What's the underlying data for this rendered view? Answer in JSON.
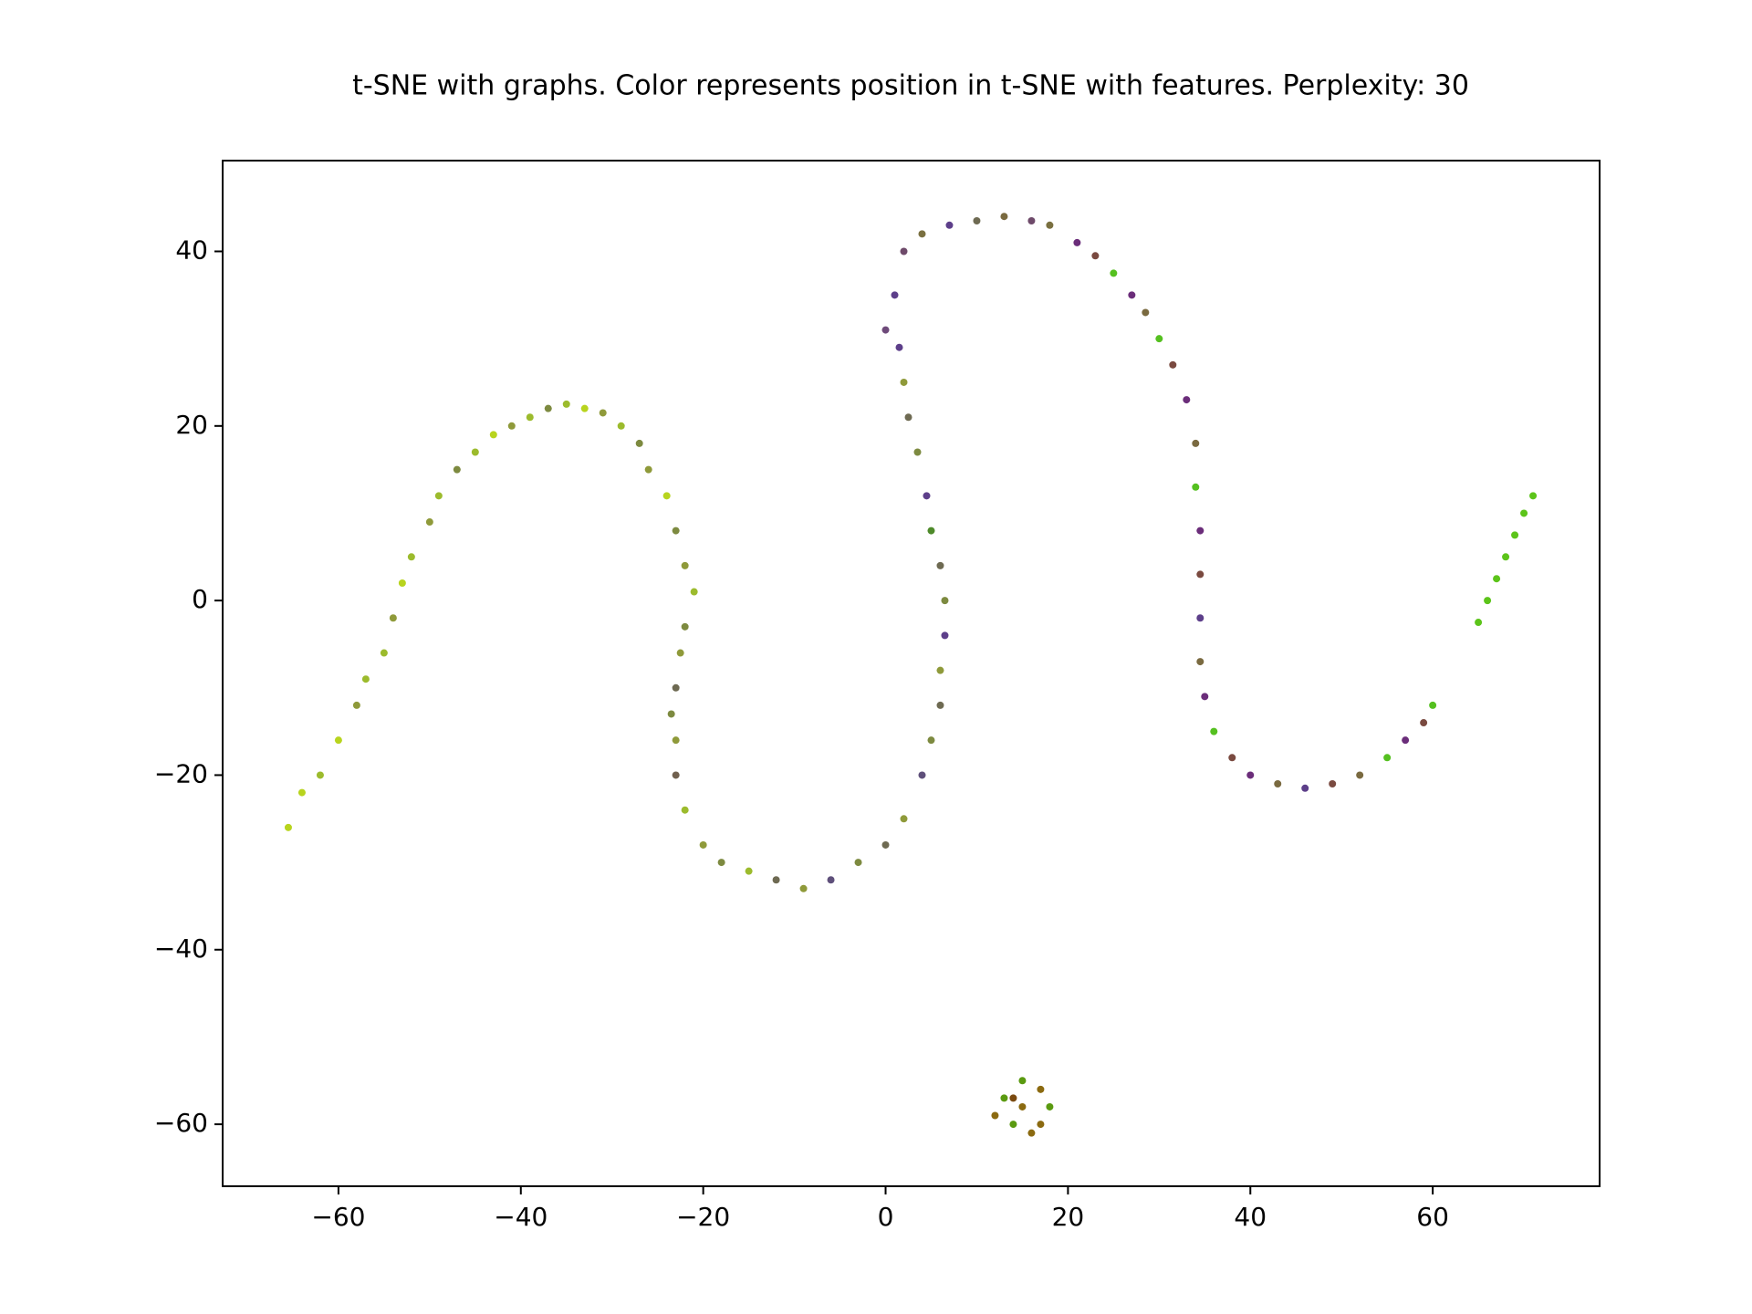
{
  "chart_data": {
    "type": "scatter",
    "title": "t-SNE with graphs. Color represents position in t-SNE with features. Perplexity: 30",
    "xlim": [
      -72.7,
      78.3
    ],
    "ylim": [
      -67.1,
      50.4
    ],
    "xticks": [
      {
        "value": -60,
        "label": "−60"
      },
      {
        "value": -40,
        "label": "−40"
      },
      {
        "value": -20,
        "label": "−20"
      },
      0,
      20,
      40,
      60
    ],
    "yticks": [
      {
        "value": -60,
        "label": "−60"
      },
      {
        "value": -40,
        "label": "−40"
      },
      {
        "value": -20,
        "label": "−20"
      },
      0,
      20,
      40
    ],
    "x": [
      -65.5,
      -64,
      -62,
      -60,
      -58,
      -57,
      -55,
      -54,
      -53,
      -52,
      -50,
      -49,
      -47,
      -45,
      -43,
      -41,
      -39,
      -37,
      -35,
      -33,
      -31,
      -29,
      -27,
      -26,
      -24,
      -23,
      -22,
      -21,
      -22,
      -22.5,
      -23,
      -23.5,
      -23,
      -23,
      -22,
      -20,
      -18,
      -15,
      -12,
      -9,
      -6,
      -3,
      0,
      2,
      4,
      5,
      6,
      6,
      6.5,
      6.5,
      6,
      5,
      4.5,
      3.5,
      2.5,
      2,
      1.5,
      0,
      1,
      2,
      4,
      7,
      10,
      13,
      16,
      18,
      21,
      23,
      25,
      27,
      28.5,
      30,
      31.5,
      33,
      34,
      34,
      34.5,
      34.5,
      34.5,
      34.5,
      35,
      36,
      38,
      40,
      43,
      46,
      49,
      52,
      55,
      57,
      59,
      60,
      65,
      66,
      67,
      68,
      69,
      70,
      71,
      15,
      13,
      17,
      14,
      17,
      12,
      18,
      15,
      16,
      14
    ],
    "values": [
      -26,
      -22,
      -20,
      -16,
      -12,
      -9,
      -6,
      -2,
      2,
      5,
      9,
      12,
      15,
      17,
      19,
      20,
      21,
      22,
      22.5,
      22,
      21.5,
      20,
      18,
      15,
      12,
      8,
      4,
      1,
      -3,
      -6,
      -10,
      -13,
      -16,
      -20,
      -24,
      -28,
      -30,
      -31,
      -32,
      -33,
      -32,
      -30,
      -28,
      -25,
      -20,
      -16,
      -12,
      -8,
      -4,
      0,
      4,
      8,
      12,
      17,
      21,
      25,
      29,
      31,
      35,
      40,
      42,
      43,
      43.5,
      44,
      43.5,
      43,
      41,
      39.5,
      37.5,
      35,
      33,
      30,
      27,
      23,
      18,
      13,
      8,
      3,
      -2,
      -7,
      -11,
      -15,
      -18,
      -20,
      -21,
      -21.5,
      -21,
      -20,
      -18,
      -16,
      -14,
      -12,
      -2.5,
      0,
      2.5,
      5,
      7.5,
      10,
      12,
      -58,
      -57,
      -56,
      -60,
      -60,
      -59,
      -58,
      -55,
      -61,
      -57
    ],
    "colors": [
      "#b8d41e",
      "#b8d41e",
      "#9cbb2d",
      "#b8d41e",
      "#8f9a3a",
      "#9cbb2d",
      "#9cbb2d",
      "#8f9a3a",
      "#b8d41e",
      "#9cbb2d",
      "#8f9a3a",
      "#9cbb2d",
      "#7d8a40",
      "#9cbb2d",
      "#b8d41e",
      "#8f9a3a",
      "#9cbb2d",
      "#7d8a40",
      "#9cbb2d",
      "#b8d41e",
      "#8f9a3a",
      "#9cbb2d",
      "#7d8a40",
      "#8f9a3a",
      "#b8d41e",
      "#7d8a40",
      "#8f9a3a",
      "#9cbb2d",
      "#7d8a40",
      "#8f9a3a",
      "#6e6a52",
      "#7d8a40",
      "#8f9a3a",
      "#70604e",
      "#9cbb2d",
      "#8f9a3a",
      "#7d8a40",
      "#9cbb2d",
      "#6e6a52",
      "#8f9a3a",
      "#5e4f7a",
      "#7d8a40",
      "#6e6a52",
      "#8f9a3a",
      "#5e4f7a",
      "#7d8a40",
      "#6e6a52",
      "#8f9a3a",
      "#5d3f8a",
      "#7d8a40",
      "#6e6a52",
      "#4e8a2a",
      "#5d3f8a",
      "#7d8a40",
      "#6e6a52",
      "#8f9a3a",
      "#5d3f8a",
      "#6e4a7a",
      "#5d3f8a",
      "#6e4a6a",
      "#7a7040",
      "#5d3f8a",
      "#6e6a52",
      "#7a6a40",
      "#6e4a6a",
      "#7a7040",
      "#6b2d7a",
      "#7a4a40",
      "#55c020",
      "#6b2d7a",
      "#7a6a40",
      "#55c020",
      "#7a4a40",
      "#6b2d7a",
      "#7a6a40",
      "#55c020",
      "#6b2d7a",
      "#7a4a40",
      "#5d3f8a",
      "#7a6a40",
      "#6b2d7a",
      "#55c020",
      "#7a4a40",
      "#6b2d7a",
      "#7a6a40",
      "#5d3f8a",
      "#7a4a40",
      "#7a6a40",
      "#55c020",
      "#6b2d7a",
      "#7a4a40",
      "#55c020",
      "#5cc41a",
      "#5cc41a",
      "#5cc41a",
      "#5cc41a",
      "#5cc41a",
      "#5cc41a",
      "#5cc41a",
      "#8b6a10",
      "#5a9a10",
      "#8b6a10",
      "#5a9a10",
      "#8b6a10",
      "#8b6a10",
      "#5a9a10",
      "#5a9a10",
      "#8b6a10",
      "#7a4a10"
    ]
  }
}
